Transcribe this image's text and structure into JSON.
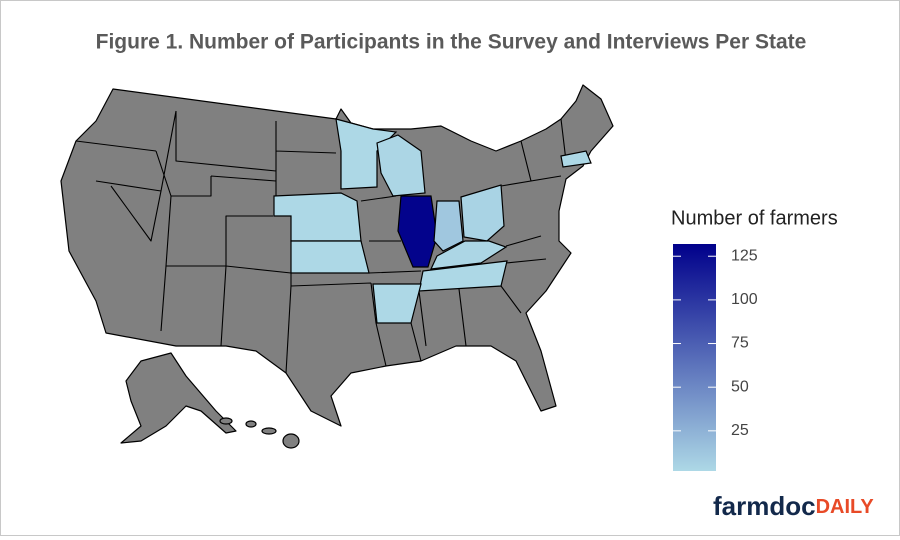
{
  "chart_data": {
    "type": "choropleth",
    "title": "Figure 1. Number of Participants in the Survey and Interviews Per State",
    "legend_title": "Number of farmers",
    "values": [
      2,
      3,
      2,
      2,
      130,
      12,
      5,
      3,
      2,
      2,
      2
    ],
    "colorbar": {
      "lim": [
        2,
        132
      ],
      "ticks": [
        25,
        50,
        75,
        100,
        125
      ],
      "low_color": "#add8e6",
      "high_color": "#00008b"
    },
    "brand": {
      "part1": "farmdoc",
      "part2": "DAILY",
      "color1": "#13294b",
      "color2": "#e84a27"
    }
  }
}
